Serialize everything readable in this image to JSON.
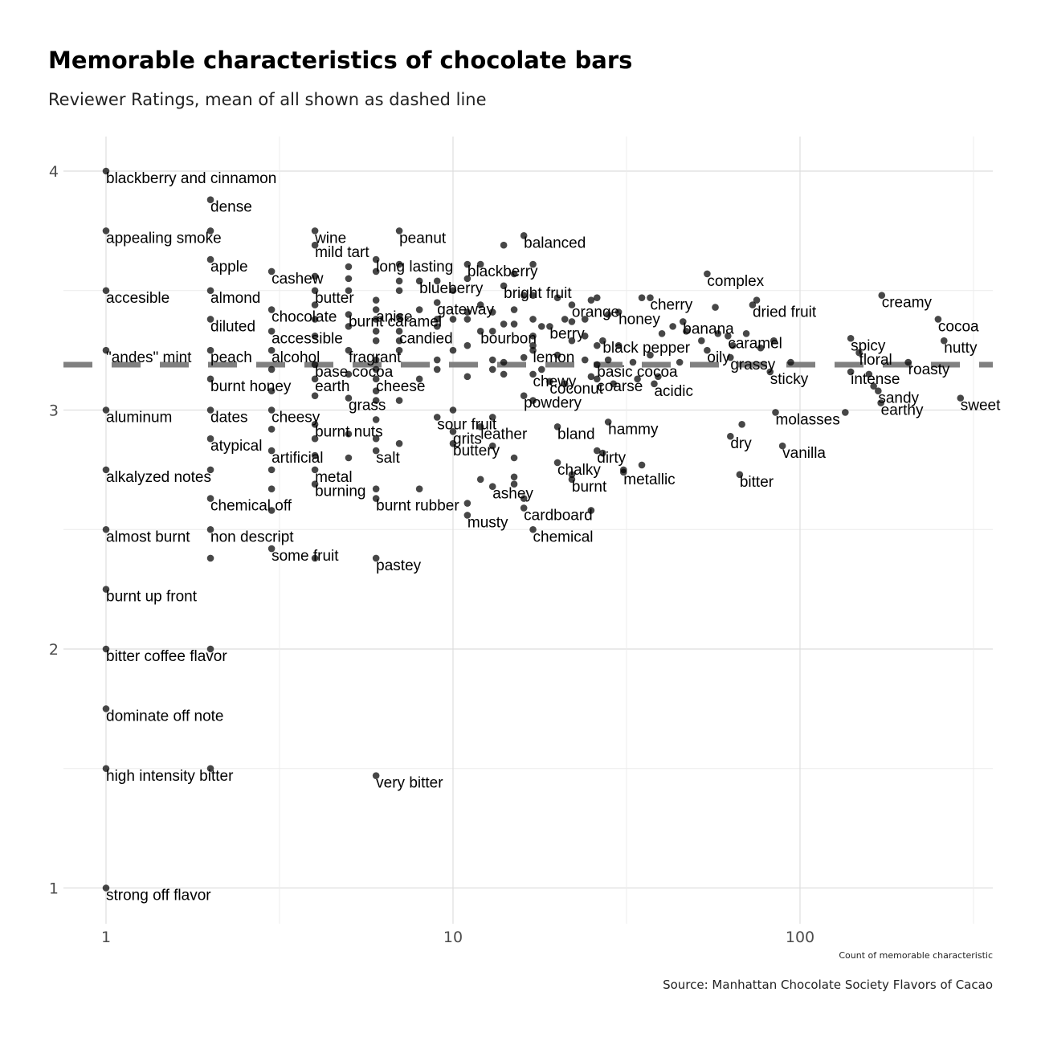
{
  "chart_data": {
    "type": "scatter",
    "title": "Memorable characteristics of chocolate bars",
    "subtitle": "Reviewer Ratings, mean of all shown as dashed line",
    "xlabel": "Count of memorable characteristic",
    "ylabel": "",
    "caption": "Source: Manhattan Chocolate Society Flavors of Cacao",
    "x_scale": "log10",
    "xlim": [
      0.85,
      360
    ],
    "ylim": [
      0.85,
      4.15
    ],
    "x_ticks": [
      "1",
      "10",
      "100"
    ],
    "y_ticks": [
      "1",
      "2",
      "3",
      "4"
    ],
    "grid": true,
    "mean_rating": 3.19,
    "colors": {
      "point": "#000000",
      "mean_line": "#808080",
      "grid": "#e5e5e5"
    },
    "points": [
      {
        "label": "blackberry and cinnamon",
        "x": 1,
        "y": 4.0
      },
      {
        "label": "appealing smoke",
        "x": 1,
        "y": 3.75
      },
      {
        "label": "accesible",
        "x": 1,
        "y": 3.5
      },
      {
        "label": "\"andes\" mint",
        "x": 1,
        "y": 3.25
      },
      {
        "label": "aluminum",
        "x": 1,
        "y": 3.0
      },
      {
        "label": "alkalyzed notes",
        "x": 1,
        "y": 2.75
      },
      {
        "label": "almost burnt",
        "x": 1,
        "y": 2.5
      },
      {
        "label": "burnt up front",
        "x": 1,
        "y": 2.25
      },
      {
        "label": "bitter coffee flavor",
        "x": 1,
        "y": 2.0
      },
      {
        "label": "dominate off note",
        "x": 1,
        "y": 1.75
      },
      {
        "label": "high intensity bitter",
        "x": 1,
        "y": 1.5
      },
      {
        "label": "strong off flavor",
        "x": 1,
        "y": 1.0
      },
      {
        "label": "dense",
        "x": 2,
        "y": 3.88
      },
      {
        "label": "apple",
        "x": 2,
        "y": 3.63
      },
      {
        "label": "almond",
        "x": 2,
        "y": 3.5
      },
      {
        "label": "diluted",
        "x": 2,
        "y": 3.38
      },
      {
        "label": "peach",
        "x": 2,
        "y": 3.25
      },
      {
        "label": "burnt honey",
        "x": 2,
        "y": 3.13
      },
      {
        "label": "dates",
        "x": 2,
        "y": 3.0
      },
      {
        "label": "atypical",
        "x": 2,
        "y": 2.88
      },
      {
        "label": "chemical off",
        "x": 2,
        "y": 2.63
      },
      {
        "label": "non descript",
        "x": 2,
        "y": 2.5
      },
      {
        "label": "cashew",
        "x": 3,
        "y": 3.58
      },
      {
        "label": "chocolate",
        "x": 3,
        "y": 3.42
      },
      {
        "label": "accessible",
        "x": 3,
        "y": 3.33
      },
      {
        "label": "alcohol",
        "x": 3,
        "y": 3.25
      },
      {
        "label": "cheesy",
        "x": 3,
        "y": 3.0
      },
      {
        "label": "artificial",
        "x": 3,
        "y": 2.83
      },
      {
        "label": "some fruit",
        "x": 3,
        "y": 2.42
      },
      {
        "label": "wine",
        "x": 4,
        "y": 3.75
      },
      {
        "label": "mild tart",
        "x": 4,
        "y": 3.69
      },
      {
        "label": "butter",
        "x": 4,
        "y": 3.5
      },
      {
        "label": "base cocoa",
        "x": 4,
        "y": 3.19
      },
      {
        "label": "earth",
        "x": 4,
        "y": 3.13
      },
      {
        "label": "burnt nuts",
        "x": 4,
        "y": 2.94
      },
      {
        "label": "metal",
        "x": 4,
        "y": 2.75
      },
      {
        "label": "burning",
        "x": 4,
        "y": 2.69
      },
      {
        "label": "fragrant",
        "x": 5,
        "y": 3.25
      },
      {
        "label": "burnt caramel",
        "x": 5,
        "y": 3.4
      },
      {
        "label": "grass",
        "x": 5,
        "y": 3.05
      },
      {
        "label": "long lasting",
        "x": 6,
        "y": 3.63
      },
      {
        "label": "anise",
        "x": 6,
        "y": 3.42
      },
      {
        "label": "cheese",
        "x": 6,
        "y": 3.13
      },
      {
        "label": "salt",
        "x": 6,
        "y": 2.83
      },
      {
        "label": "burnt rubber",
        "x": 6,
        "y": 2.63
      },
      {
        "label": "pastey",
        "x": 6,
        "y": 2.38
      },
      {
        "label": "very bitter",
        "x": 6,
        "y": 1.47
      },
      {
        "label": "peanut",
        "x": 7,
        "y": 3.75
      },
      {
        "label": "candied",
        "x": 7,
        "y": 3.33
      },
      {
        "label": "blueberry",
        "x": 8,
        "y": 3.54
      },
      {
        "label": "gateway",
        "x": 9,
        "y": 3.45
      },
      {
        "label": "sour fruit",
        "x": 9,
        "y": 2.97
      },
      {
        "label": "grits",
        "x": 10,
        "y": 2.91
      },
      {
        "label": "buttery",
        "x": 10,
        "y": 2.86
      },
      {
        "label": "blackberry",
        "x": 11,
        "y": 3.61
      },
      {
        "label": "musty",
        "x": 11,
        "y": 2.56
      },
      {
        "label": "bourbon",
        "x": 12,
        "y": 3.33
      },
      {
        "label": "leather",
        "x": 12,
        "y": 2.93
      },
      {
        "label": "ashey",
        "x": 13,
        "y": 2.68
      },
      {
        "label": "bright fruit",
        "x": 14,
        "y": 3.52
      },
      {
        "label": "balanced",
        "x": 16,
        "y": 3.73
      },
      {
        "label": "powdery",
        "x": 16,
        "y": 3.06
      },
      {
        "label": "cardboard",
        "x": 16,
        "y": 2.59
      },
      {
        "label": "lemon",
        "x": 17,
        "y": 3.25
      },
      {
        "label": "chewy",
        "x": 17,
        "y": 3.15
      },
      {
        "label": "chemical",
        "x": 17,
        "y": 2.5
      },
      {
        "label": "berry",
        "x": 19,
        "y": 3.35
      },
      {
        "label": "coconut",
        "x": 19,
        "y": 3.12
      },
      {
        "label": "bland",
        "x": 20,
        "y": 2.93
      },
      {
        "label": "chalky",
        "x": 20,
        "y": 2.78
      },
      {
        "label": "orange",
        "x": 22,
        "y": 3.44
      },
      {
        "label": "burnt",
        "x": 22,
        "y": 2.71
      },
      {
        "label": "basic cocoa",
        "x": 26,
        "y": 3.19
      },
      {
        "label": "dirty",
        "x": 26,
        "y": 2.83
      },
      {
        "label": "black pepper",
        "x": 27,
        "y": 3.29
      },
      {
        "label": "coarse",
        "x": 26,
        "y": 3.13
      },
      {
        "label": "hammy",
        "x": 28,
        "y": 2.95
      },
      {
        "label": "honey",
        "x": 30,
        "y": 3.41
      },
      {
        "label": "metallic",
        "x": 31,
        "y": 2.74
      },
      {
        "label": "cherry",
        "x": 37,
        "y": 3.47
      },
      {
        "label": "acidic",
        "x": 38,
        "y": 3.11
      },
      {
        "label": "banana",
        "x": 46,
        "y": 3.37
      },
      {
        "label": "complex",
        "x": 54,
        "y": 3.57
      },
      {
        "label": "oily",
        "x": 54,
        "y": 3.25
      },
      {
        "label": "caramel",
        "x": 62,
        "y": 3.31
      },
      {
        "label": "grassy",
        "x": 63,
        "y": 3.22
      },
      {
        "label": "dry",
        "x": 63,
        "y": 2.89
      },
      {
        "label": "bitter",
        "x": 67,
        "y": 2.73
      },
      {
        "label": "dried fruit",
        "x": 73,
        "y": 3.44
      },
      {
        "label": "sticky",
        "x": 82,
        "y": 3.16
      },
      {
        "label": "molasses",
        "x": 85,
        "y": 2.99
      },
      {
        "label": "vanilla",
        "x": 89,
        "y": 2.85
      },
      {
        "label": "spicy",
        "x": 140,
        "y": 3.3
      },
      {
        "label": "floral",
        "x": 148,
        "y": 3.24
      },
      {
        "label": "intense",
        "x": 140,
        "y": 3.16
      },
      {
        "label": "sandy",
        "x": 168,
        "y": 3.08
      },
      {
        "label": "earthy",
        "x": 171,
        "y": 3.03
      },
      {
        "label": "roasty",
        "x": 205,
        "y": 3.2
      },
      {
        "label": "creamy",
        "x": 172,
        "y": 3.48
      },
      {
        "label": "cocoa",
        "x": 250,
        "y": 3.38
      },
      {
        "label": "nutty",
        "x": 260,
        "y": 3.29
      },
      {
        "label": "sweet",
        "x": 290,
        "y": 3.05
      },
      {
        "label": "",
        "x": 2,
        "y": 3.75
      },
      {
        "label": "",
        "x": 2,
        "y": 2.75
      },
      {
        "label": "",
        "x": 2,
        "y": 2.38
      },
      {
        "label": "",
        "x": 2,
        "y": 2.0
      },
      {
        "label": "",
        "x": 2,
        "y": 1.5
      },
      {
        "label": "",
        "x": 3,
        "y": 3.17
      },
      {
        "label": "",
        "x": 3,
        "y": 3.08
      },
      {
        "label": "",
        "x": 3,
        "y": 2.92
      },
      {
        "label": "",
        "x": 3,
        "y": 2.75
      },
      {
        "label": "",
        "x": 3,
        "y": 2.67
      },
      {
        "label": "",
        "x": 3,
        "y": 2.58
      },
      {
        "label": "",
        "x": 4,
        "y": 3.56
      },
      {
        "label": "",
        "x": 4,
        "y": 3.44
      },
      {
        "label": "",
        "x": 4,
        "y": 3.38
      },
      {
        "label": "",
        "x": 4,
        "y": 3.31
      },
      {
        "label": "",
        "x": 4,
        "y": 3.06
      },
      {
        "label": "",
        "x": 4,
        "y": 2.88
      },
      {
        "label": "",
        "x": 4,
        "y": 2.81
      },
      {
        "label": "",
        "x": 4,
        "y": 2.38
      },
      {
        "label": "",
        "x": 5,
        "y": 3.6
      },
      {
        "label": "",
        "x": 5,
        "y": 3.55
      },
      {
        "label": "",
        "x": 5,
        "y": 3.5
      },
      {
        "label": "",
        "x": 5,
        "y": 3.35
      },
      {
        "label": "",
        "x": 5,
        "y": 3.15
      },
      {
        "label": "",
        "x": 5,
        "y": 2.9
      },
      {
        "label": "",
        "x": 5,
        "y": 2.8
      },
      {
        "label": "",
        "x": 6,
        "y": 3.58
      },
      {
        "label": "",
        "x": 6,
        "y": 3.46
      },
      {
        "label": "",
        "x": 6,
        "y": 3.38
      },
      {
        "label": "",
        "x": 6,
        "y": 3.33
      },
      {
        "label": "",
        "x": 6,
        "y": 3.29
      },
      {
        "label": "",
        "x": 6,
        "y": 3.21
      },
      {
        "label": "",
        "x": 6,
        "y": 3.17
      },
      {
        "label": "",
        "x": 6,
        "y": 3.08
      },
      {
        "label": "",
        "x": 6,
        "y": 3.04
      },
      {
        "label": "",
        "x": 6,
        "y": 2.96
      },
      {
        "label": "",
        "x": 6,
        "y": 2.88
      },
      {
        "label": "",
        "x": 6,
        "y": 2.67
      },
      {
        "label": "",
        "x": 7,
        "y": 3.61
      },
      {
        "label": "",
        "x": 7,
        "y": 3.54
      },
      {
        "label": "",
        "x": 7,
        "y": 3.5
      },
      {
        "label": "",
        "x": 7,
        "y": 3.39
      },
      {
        "label": "",
        "x": 7,
        "y": 3.29
      },
      {
        "label": "",
        "x": 7,
        "y": 3.25
      },
      {
        "label": "",
        "x": 7,
        "y": 3.04
      },
      {
        "label": "",
        "x": 7,
        "y": 2.86
      },
      {
        "label": "",
        "x": 8,
        "y": 3.42
      },
      {
        "label": "",
        "x": 8,
        "y": 3.13
      },
      {
        "label": "",
        "x": 8,
        "y": 2.67
      },
      {
        "label": "",
        "x": 9,
        "y": 3.54
      },
      {
        "label": "",
        "x": 9,
        "y": 3.38
      },
      {
        "label": "",
        "x": 9,
        "y": 3.35
      },
      {
        "label": "",
        "x": 9,
        "y": 3.21
      },
      {
        "label": "",
        "x": 9,
        "y": 3.17
      },
      {
        "label": "",
        "x": 10,
        "y": 3.5
      },
      {
        "label": "",
        "x": 10,
        "y": 3.38
      },
      {
        "label": "",
        "x": 10,
        "y": 3.25
      },
      {
        "label": "",
        "x": 10,
        "y": 3.0
      },
      {
        "label": "",
        "x": 11,
        "y": 3.55
      },
      {
        "label": "",
        "x": 11,
        "y": 3.41
      },
      {
        "label": "",
        "x": 11,
        "y": 3.38
      },
      {
        "label": "",
        "x": 11,
        "y": 3.27
      },
      {
        "label": "",
        "x": 11,
        "y": 3.14
      },
      {
        "label": "",
        "x": 11,
        "y": 2.61
      },
      {
        "label": "",
        "x": 12,
        "y": 3.61
      },
      {
        "label": "",
        "x": 12,
        "y": 3.44
      },
      {
        "label": "",
        "x": 12,
        "y": 2.71
      },
      {
        "label": "",
        "x": 13,
        "y": 3.41
      },
      {
        "label": "",
        "x": 13,
        "y": 3.33
      },
      {
        "label": "",
        "x": 13,
        "y": 3.21
      },
      {
        "label": "",
        "x": 13,
        "y": 3.17
      },
      {
        "label": "",
        "x": 13,
        "y": 2.97
      },
      {
        "label": "",
        "x": 13,
        "y": 2.85
      },
      {
        "label": "",
        "x": 14,
        "y": 3.69
      },
      {
        "label": "",
        "x": 14,
        "y": 3.36
      },
      {
        "label": "",
        "x": 14,
        "y": 3.2
      },
      {
        "label": "",
        "x": 14,
        "y": 3.15
      },
      {
        "label": "",
        "x": 15,
        "y": 3.57
      },
      {
        "label": "",
        "x": 15,
        "y": 3.42
      },
      {
        "label": "",
        "x": 15,
        "y": 3.36
      },
      {
        "label": "",
        "x": 15,
        "y": 2.8
      },
      {
        "label": "",
        "x": 15,
        "y": 2.72
      },
      {
        "label": "",
        "x": 15,
        "y": 2.69
      },
      {
        "label": "",
        "x": 16,
        "y": 3.48
      },
      {
        "label": "",
        "x": 16,
        "y": 3.22
      },
      {
        "label": "",
        "x": 16,
        "y": 2.63
      },
      {
        "label": "",
        "x": 17,
        "y": 3.61
      },
      {
        "label": "",
        "x": 17,
        "y": 3.48
      },
      {
        "label": "",
        "x": 17,
        "y": 3.38
      },
      {
        "label": "",
        "x": 17,
        "y": 3.31
      },
      {
        "label": "",
        "x": 17,
        "y": 3.27
      },
      {
        "label": "",
        "x": 17,
        "y": 3.04
      },
      {
        "label": "",
        "x": 18,
        "y": 3.35
      },
      {
        "label": "",
        "x": 18,
        "y": 3.17
      },
      {
        "label": "",
        "x": 20,
        "y": 3.47
      },
      {
        "label": "",
        "x": 20,
        "y": 3.23
      },
      {
        "label": "",
        "x": 21,
        "y": 3.38
      },
      {
        "label": "",
        "x": 21,
        "y": 3.11
      },
      {
        "label": "",
        "x": 22,
        "y": 3.37
      },
      {
        "label": "",
        "x": 22,
        "y": 3.29
      },
      {
        "label": "",
        "x": 22,
        "y": 2.73
      },
      {
        "label": "",
        "x": 24,
        "y": 3.38
      },
      {
        "label": "",
        "x": 24,
        "y": 3.31
      },
      {
        "label": "",
        "x": 24,
        "y": 3.21
      },
      {
        "label": "",
        "x": 25,
        "y": 3.46
      },
      {
        "label": "",
        "x": 25,
        "y": 3.14
      },
      {
        "label": "",
        "x": 25,
        "y": 2.58
      },
      {
        "label": "",
        "x": 26,
        "y": 3.47
      },
      {
        "label": "",
        "x": 26,
        "y": 3.27
      },
      {
        "label": "",
        "x": 27,
        "y": 2.82
      },
      {
        "label": "",
        "x": 28,
        "y": 3.4
      },
      {
        "label": "",
        "x": 28,
        "y": 3.21
      },
      {
        "label": "",
        "x": 29,
        "y": 3.11
      },
      {
        "label": "",
        "x": 30,
        "y": 3.27
      },
      {
        "label": "",
        "x": 31,
        "y": 2.75
      },
      {
        "label": "",
        "x": 33,
        "y": 3.2
      },
      {
        "label": "",
        "x": 34,
        "y": 3.13
      },
      {
        "label": "",
        "x": 35,
        "y": 3.47
      },
      {
        "label": "",
        "x": 35,
        "y": 2.77
      },
      {
        "label": "",
        "x": 37,
        "y": 3.23
      },
      {
        "label": "",
        "x": 39,
        "y": 3.14
      },
      {
        "label": "",
        "x": 40,
        "y": 3.32
      },
      {
        "label": "",
        "x": 43,
        "y": 3.35
      },
      {
        "label": "",
        "x": 45,
        "y": 3.2
      },
      {
        "label": "",
        "x": 47,
        "y": 3.33
      },
      {
        "label": "",
        "x": 52,
        "y": 3.29
      },
      {
        "label": "",
        "x": 57,
        "y": 3.43
      },
      {
        "label": "",
        "x": 58,
        "y": 3.32
      },
      {
        "label": "",
        "x": 64,
        "y": 3.27
      },
      {
        "label": "",
        "x": 68,
        "y": 2.94
      },
      {
        "label": "",
        "x": 70,
        "y": 3.32
      },
      {
        "label": "",
        "x": 75,
        "y": 3.46
      },
      {
        "label": "",
        "x": 77,
        "y": 3.26
      },
      {
        "label": "",
        "x": 84,
        "y": 3.29
      },
      {
        "label": "",
        "x": 94,
        "y": 3.2
      },
      {
        "label": "",
        "x": 135,
        "y": 2.99
      },
      {
        "label": "",
        "x": 158,
        "y": 3.15
      },
      {
        "label": "",
        "x": 163,
        "y": 3.1
      }
    ]
  }
}
